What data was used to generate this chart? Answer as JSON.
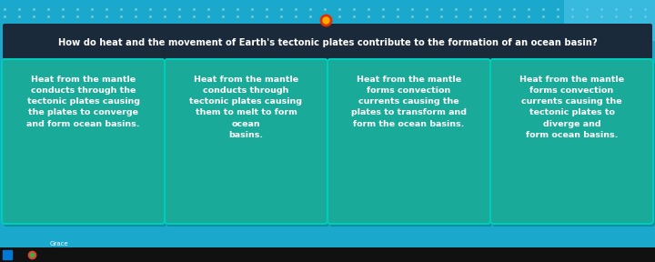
{
  "background_color": "#1aa8cc",
  "question_bg": "#1a2a3a",
  "question_text": "How do heat and the movement of Earth's tectonic plates contribute to the formation of an ocean basin?",
  "question_text_color": "#ffffff",
  "card_text_color": "#ffffff",
  "cards": [
    "Heat from the mantle\nconducts through the\ntectonic plates causing\nthe plates to converge\nand form ocean basins.",
    "Heat from the mantle\nconducts through\ntectonic plates causing\nthem to melt to form\nocean\nbasins.",
    "Heat from the mantle\nforms convection\ncurrents causing the\nplates to transform and\nform the ocean basins.",
    "Heat from the mantle\nforms convection\ncurrents causing the\ntectonic plates to\ndiverge and\nform ocean basins."
  ],
  "card_colors": [
    "#1aaa99",
    "#1aaa99",
    "#1aaa99",
    "#1aaa99"
  ],
  "card_border_color": "#00ccbb",
  "dot_color": "#88ccdd",
  "icon_outer": "#dd3300",
  "icon_inner": "#ffaa00",
  "figsize": [
    7.2,
    2.88
  ],
  "dpi": 100
}
